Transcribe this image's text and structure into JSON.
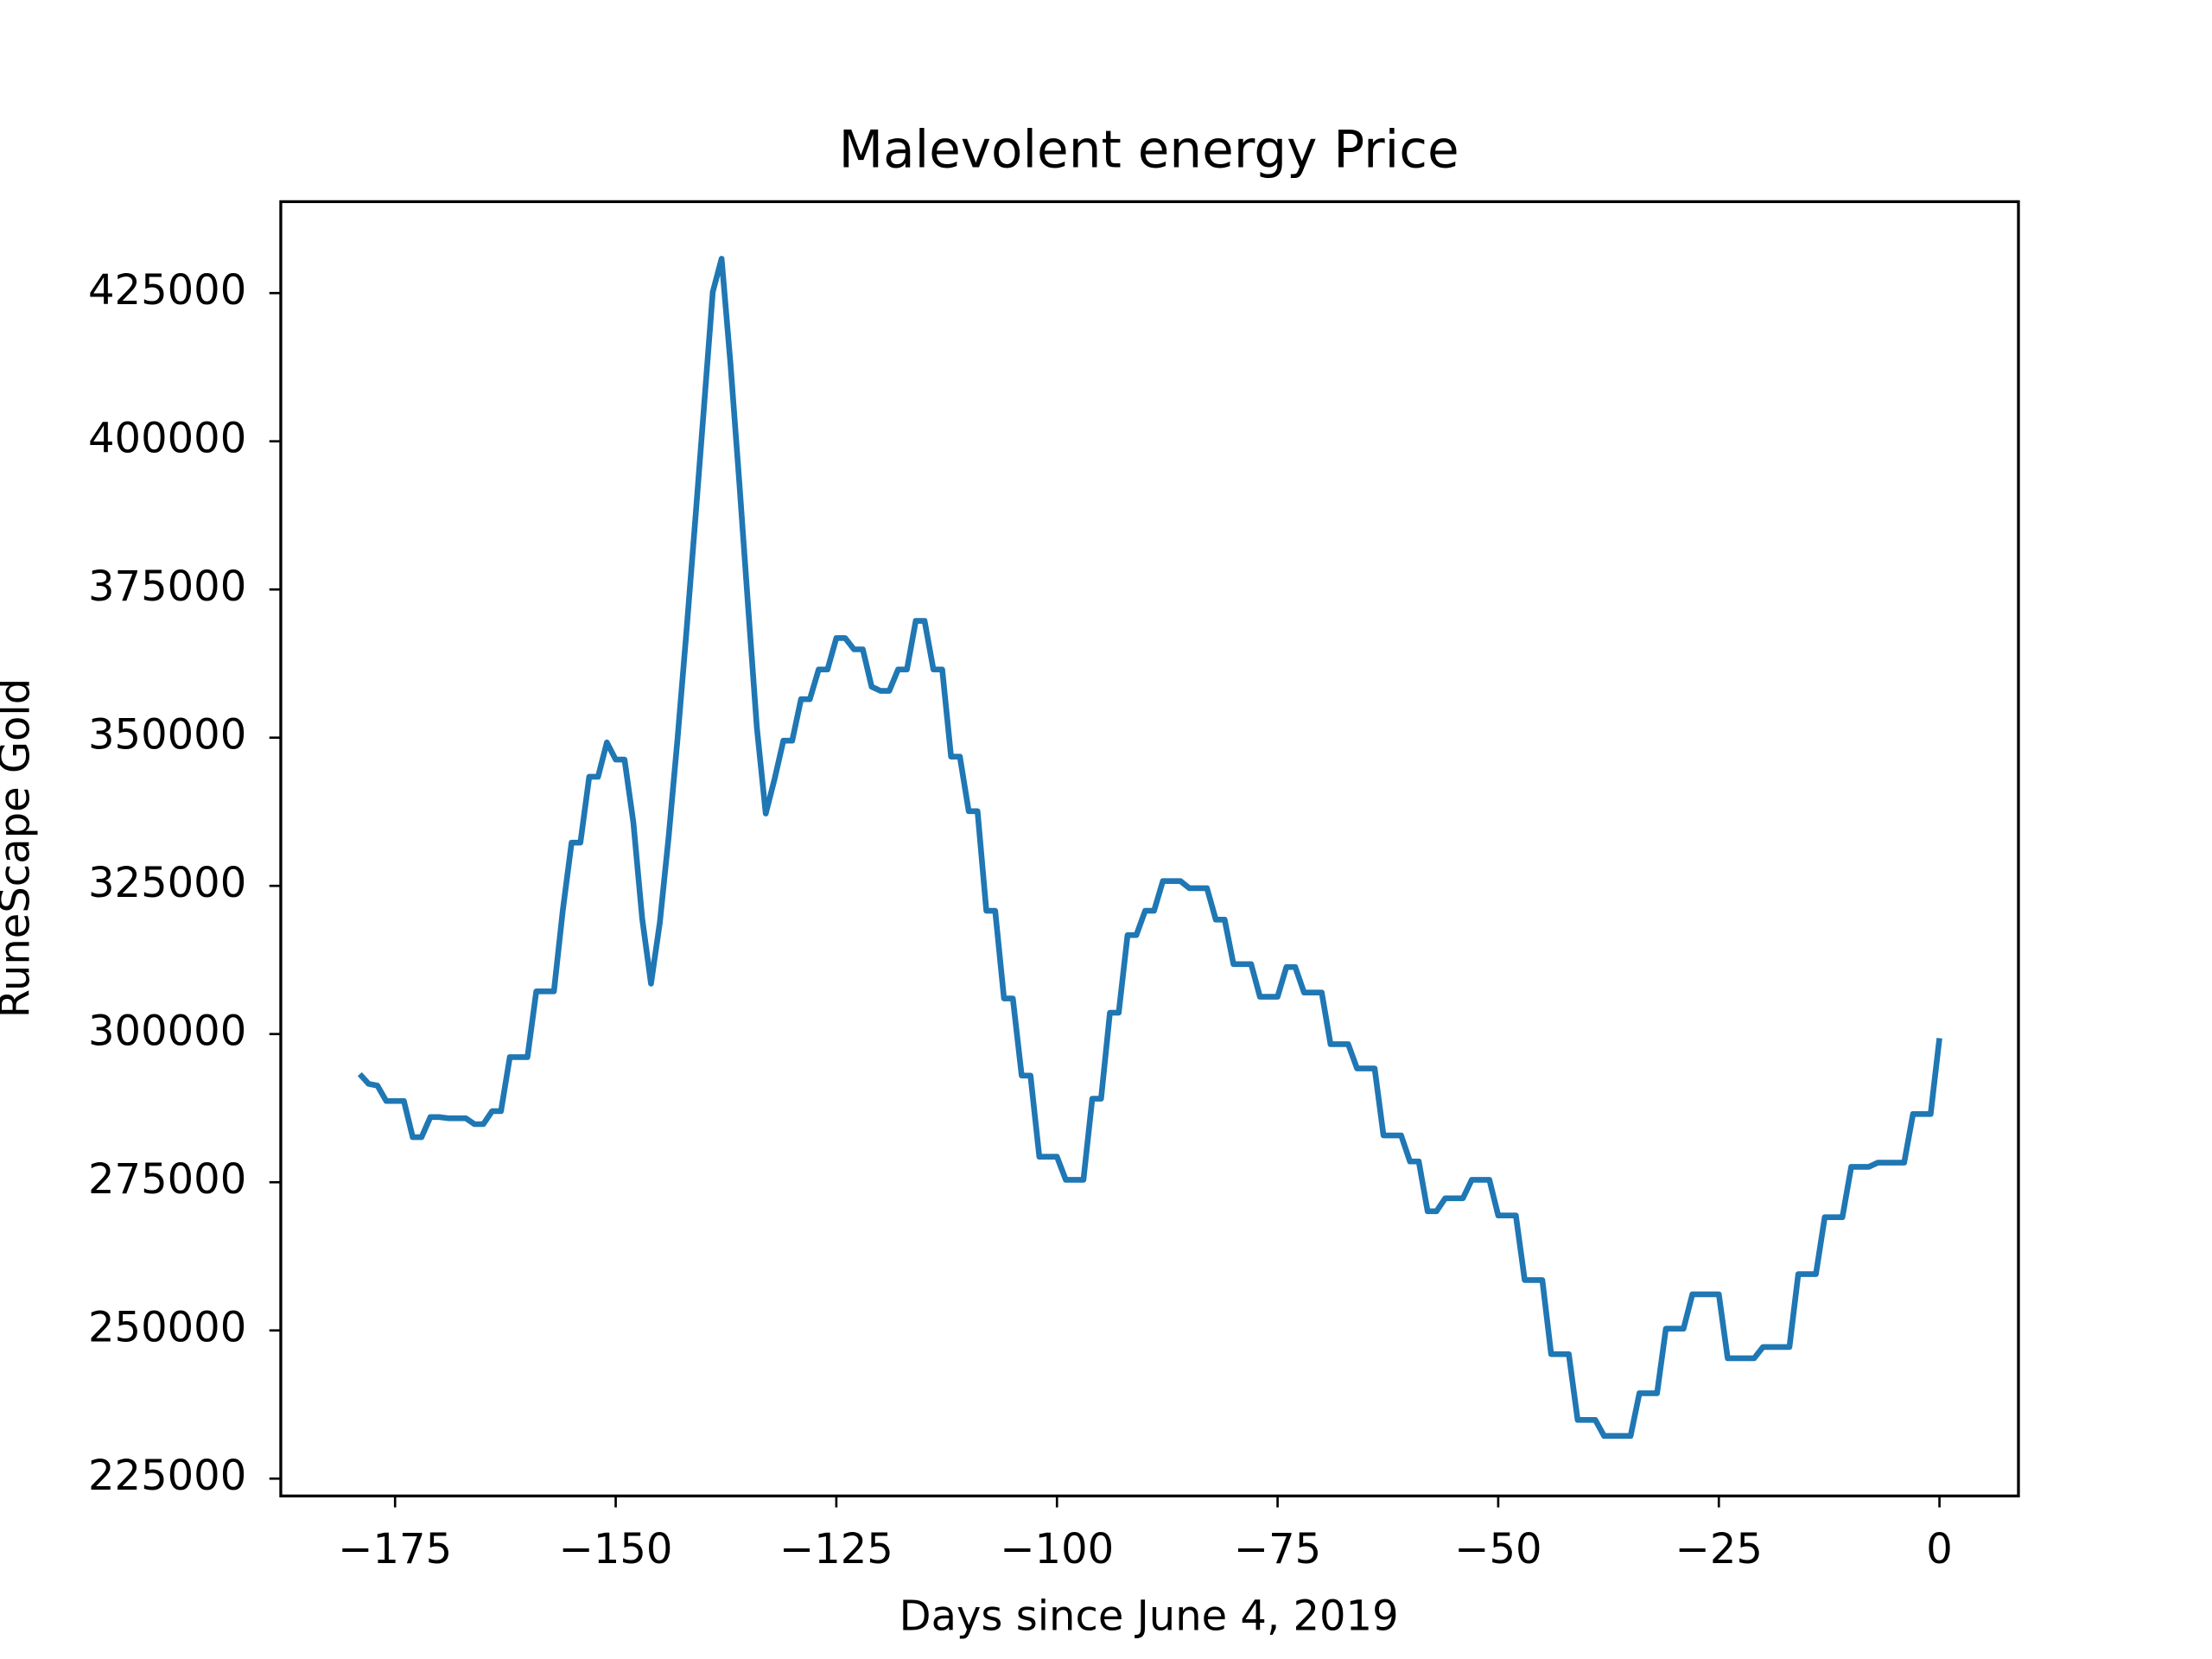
{
  "chart_data": {
    "type": "line",
    "title": "Malevolent energy Price",
    "xlabel": "Days since June 4, 2019",
    "ylabel": "RuneScape Gold",
    "color": "#1f77b4",
    "x": [
      -179,
      -178,
      -177,
      -176,
      -175,
      -174,
      -173,
      -172,
      -171,
      -170,
      -169,
      -168,
      -167,
      -166,
      -165,
      -164,
      -163,
      -162,
      -161,
      -160,
      -159,
      -158,
      -157,
      -156,
      -155,
      -154,
      -153,
      -152,
      -151,
      -150,
      -149,
      -148,
      -147,
      -146,
      -145,
      -144,
      -143,
      -142,
      -141,
      -140,
      -139,
      -138,
      -137,
      -136,
      -135,
      -134,
      -133,
      -132,
      -131,
      -130,
      -129,
      -128,
      -127,
      -126,
      -125,
      -124,
      -123,
      -122,
      -121,
      -120,
      -119,
      -118,
      -117,
      -116,
      -115,
      -114,
      -113,
      -112,
      -111,
      -110,
      -109,
      -108,
      -107,
      -106,
      -105,
      -104,
      -103,
      -102,
      -101,
      -100,
      -99,
      -98,
      -97,
      -96,
      -95,
      -94,
      -93,
      -92,
      -91,
      -90,
      -89,
      -88,
      -87,
      -86,
      -85,
      -84,
      -83,
      -82,
      -81,
      -80,
      -79,
      -78,
      -77,
      -76,
      -75,
      -74,
      -73,
      -72,
      -71,
      -70,
      -69,
      -68,
      -67,
      -66,
      -65,
      -64,
      -63,
      -62,
      -61,
      -60,
      -59,
      -58,
      -57,
      -56,
      -55,
      -54,
      -53,
      -52,
      -51,
      -50,
      -49,
      -48,
      -47,
      -46,
      -45,
      -44,
      -43,
      -42,
      -41,
      -40,
      -39,
      -38,
      -37,
      -36,
      -35,
      -34,
      -33,
      -32,
      -31,
      -30,
      -29,
      -28,
      -27,
      -26,
      -25,
      -24,
      -23,
      -22,
      -21,
      -20,
      -19,
      -18,
      -17,
      -16,
      -15,
      -14,
      -13,
      -12,
      -11,
      -10,
      -9,
      -8,
      -7,
      -6,
      -5,
      -4,
      -3,
      -2,
      -1,
      0
    ],
    "values": [
      293250,
      291600,
      291300,
      288700,
      288700,
      288700,
      282600,
      282600,
      286000,
      286000,
      285800,
      285800,
      285800,
      284800,
      284800,
      287000,
      287000,
      296100,
      296100,
      296100,
      307200,
      307200,
      307200,
      320800,
      332300,
      332300,
      343400,
      343400,
      349200,
      346300,
      346300,
      335700,
      319500,
      308500,
      318800,
      333300,
      349700,
      367600,
      386400,
      405700,
      425200,
      430800,
      413200,
      393200,
      372200,
      351600,
      337200,
      343000,
      349500,
      349500,
      356500,
      356500,
      361500,
      361500,
      366800,
      366800,
      364900,
      364900,
      358600,
      357900,
      357900,
      361500,
      361500,
      369700,
      369700,
      361500,
      361500,
      346800,
      346800,
      337600,
      337600,
      320800,
      320800,
      306000,
      306000,
      293000,
      293000,
      279300,
      279300,
      279300,
      275400,
      275400,
      275400,
      289100,
      289100,
      303600,
      303600,
      316700,
      316700,
      320800,
      320800,
      325800,
      325800,
      325800,
      324600,
      324600,
      324600,
      319300,
      319300,
      311800,
      311800,
      311800,
      306300,
      306300,
      306300,
      311300,
      311300,
      307000,
      307000,
      307000,
      298300,
      298300,
      298300,
      294200,
      294200,
      294200,
      282900,
      282900,
      282900,
      278500,
      278500,
      270100,
      270100,
      272300,
      272300,
      272300,
      275400,
      275400,
      275400,
      269400,
      269400,
      269400,
      258500,
      258500,
      258500,
      246000,
      246000,
      246000,
      234900,
      234900,
      234900,
      232200,
      232200,
      232200,
      232200,
      239400,
      239400,
      239400,
      250300,
      250300,
      250300,
      256100,
      256100,
      256100,
      256100,
      245300,
      245300,
      245300,
      245300,
      247200,
      247200,
      247200,
      247200,
      259500,
      259500,
      259500,
      269100,
      269100,
      269100,
      277600,
      277600,
      277600,
      278300,
      278300,
      278300,
      278300,
      286500,
      286500,
      286500,
      299300
    ],
    "xlim": [
      -187.95,
      8.95
    ],
    "xticks": [
      {
        "value": -175,
        "label": "−175"
      },
      {
        "value": -150,
        "label": "−150"
      },
      {
        "value": -125,
        "label": "−125"
      },
      {
        "value": -100,
        "label": "−100"
      },
      {
        "value": -75,
        "label": "−75"
      },
      {
        "value": -50,
        "label": "−50"
      },
      {
        "value": -25,
        "label": "−25"
      },
      0
    ],
    "ylim": [
      222075,
      440425
    ],
    "yticks": [
      225000,
      250000,
      275000,
      300000,
      325000,
      350000,
      375000,
      400000,
      425000
    ]
  }
}
